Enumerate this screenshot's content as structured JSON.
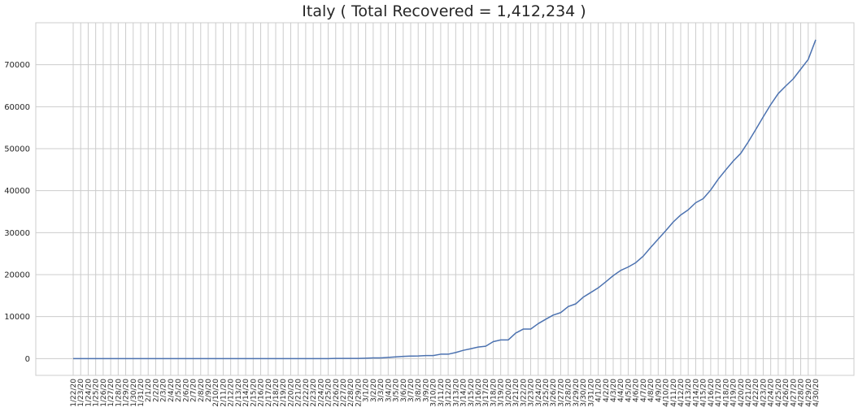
{
  "chart_data": {
    "type": "line",
    "title": "Italy ( Total Recovered = 1,412,234 )",
    "xlabel": "",
    "ylabel": "",
    "ylim": [
      -4000,
      80000
    ],
    "yticks": [
      0,
      10000,
      20000,
      30000,
      40000,
      50000,
      60000,
      70000
    ],
    "ytick_labels": [
      "0",
      "10000",
      "20000",
      "30000",
      "40000",
      "50000",
      "60000",
      "70000"
    ],
    "grid": true,
    "categories": [
      "1/22/20",
      "1/23/20",
      "1/24/20",
      "1/25/20",
      "1/26/20",
      "1/27/20",
      "1/28/20",
      "1/29/20",
      "1/30/20",
      "1/31/20",
      "2/1/20",
      "2/2/20",
      "2/3/20",
      "2/4/20",
      "2/5/20",
      "2/6/20",
      "2/7/20",
      "2/8/20",
      "2/9/20",
      "2/10/20",
      "2/11/20",
      "2/12/20",
      "2/13/20",
      "2/14/20",
      "2/15/20",
      "2/16/20",
      "2/17/20",
      "2/18/20",
      "2/19/20",
      "2/20/20",
      "2/21/20",
      "2/22/20",
      "2/23/20",
      "2/24/20",
      "2/25/20",
      "2/26/20",
      "2/27/20",
      "2/28/20",
      "2/29/20",
      "3/1/20",
      "3/2/20",
      "3/3/20",
      "3/4/20",
      "3/5/20",
      "3/6/20",
      "3/7/20",
      "3/8/20",
      "3/9/20",
      "3/10/20",
      "3/11/20",
      "3/12/20",
      "3/13/20",
      "3/14/20",
      "3/15/20",
      "3/16/20",
      "3/17/20",
      "3/18/20",
      "3/19/20",
      "3/20/20",
      "3/21/20",
      "3/22/20",
      "3/23/20",
      "3/24/20",
      "3/25/20",
      "3/26/20",
      "3/27/20",
      "3/28/20",
      "3/29/20",
      "3/30/20",
      "3/31/20",
      "4/1/20",
      "4/2/20",
      "4/3/20",
      "4/4/20",
      "4/5/20",
      "4/6/20",
      "4/7/20",
      "4/8/20",
      "4/9/20",
      "4/10/20",
      "4/11/20",
      "4/12/20",
      "4/13/20",
      "4/14/20",
      "4/15/20",
      "4/16/20",
      "4/17/20",
      "4/18/20",
      "4/19/20",
      "4/20/20",
      "4/21/20",
      "4/22/20",
      "4/23/20",
      "4/24/20",
      "4/25/20",
      "4/26/20",
      "4/27/20",
      "4/28/20",
      "4/29/20",
      "4/30/20"
    ],
    "series": [
      {
        "color": "#4c72b0",
        "values": [
          0,
          0,
          0,
          0,
          0,
          0,
          0,
          0,
          0,
          0,
          0,
          0,
          0,
          0,
          0,
          0,
          0,
          0,
          0,
          0,
          0,
          0,
          0,
          0,
          0,
          0,
          0,
          0,
          0,
          0,
          0,
          1,
          2,
          1,
          3,
          45,
          46,
          46,
          50,
          83,
          149,
          160,
          276,
          414,
          523,
          589,
          622,
          724,
          724,
          1045,
          1045,
          1439,
          1966,
          2335,
          2749,
          2941,
          4025,
          4440,
          4440,
          6072,
          7024,
          7024,
          8326,
          9362,
          10361,
          10950,
          12384,
          13030,
          14620,
          15729,
          16847,
          18278,
          19758,
          20996,
          21815,
          22837,
          24392,
          26491,
          28470,
          30455,
          32534,
          34211,
          35435,
          37130,
          38092,
          40164,
          42727,
          44927,
          47055,
          48877,
          51600,
          54543,
          57576,
          60498,
          63120,
          64928,
          66624,
          68941,
          71252,
          75945
        ]
      }
    ]
  }
}
